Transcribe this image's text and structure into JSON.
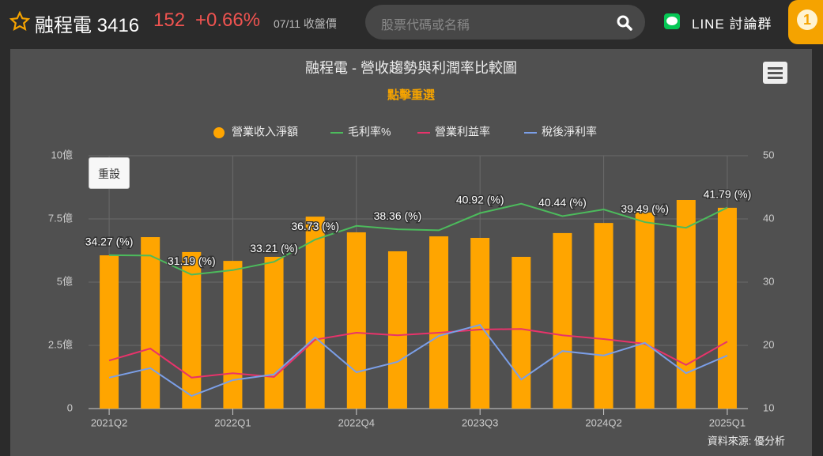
{
  "header": {
    "name": "融程電 3416",
    "price": "152",
    "change": "+0.66%",
    "date": "07/11 收盤價",
    "search_placeholder": "股票代碼或名稱",
    "line_group": "LINE 討論群",
    "badge": "1"
  },
  "chart_data": {
    "type": "bar",
    "title": "融程電 - 營收趨勢與利潤率比較圖",
    "subtitle": "點擊重選",
    "reset": "重設",
    "source": "資料來源: 優分析",
    "categories": [
      "2021Q2",
      null,
      null,
      "2022Q1",
      null,
      null,
      "2022Q4",
      null,
      null,
      "2023Q3",
      null,
      null,
      "2024Q2",
      null,
      null,
      "2025Q1"
    ],
    "series": [
      {
        "name": "營業收入淨額",
        "type": "bar",
        "color": "#ffa500",
        "values": [
          6.06,
          6.78,
          6.19,
          5.84,
          6.0,
          7.59,
          6.97,
          6.22,
          6.81,
          6.75,
          6.0,
          6.94,
          7.34,
          7.75,
          8.25,
          7.94
        ]
      },
      {
        "name": "毛利率%",
        "type": "line",
        "axis": "y2",
        "color": "#4cbb5c",
        "values": [
          34.27,
          34.2,
          31.19,
          31.9,
          33.21,
          36.73,
          38.9,
          38.36,
          38.2,
          40.92,
          42.4,
          40.44,
          41.5,
          39.49,
          38.6,
          41.79
        ],
        "value_labels": [
          "34.27 (%)",
          null,
          "31.19 (%)",
          null,
          "33.21 (%)",
          "36.73 (%)",
          null,
          "38.36 (%)",
          null,
          "40.92 (%)",
          null,
          "40.44 (%)",
          null,
          "39.49 (%)",
          null,
          "41.79 (%)"
        ]
      },
      {
        "name": "營業利益率",
        "type": "line",
        "axis": "y2",
        "color": "#e8336b",
        "values": [
          17.6,
          19.5,
          14.9,
          15.6,
          15.0,
          20.9,
          22.0,
          21.6,
          22.0,
          22.5,
          22.6,
          21.6,
          21.0,
          20.25,
          16.9,
          20.6
        ]
      },
      {
        "name": "稅後淨利率",
        "type": "line",
        "axis": "y2",
        "color": "#7b9fe8",
        "values": [
          14.9,
          16.4,
          12.0,
          14.5,
          15.4,
          21.25,
          15.75,
          17.4,
          21.5,
          23.25,
          14.6,
          19.1,
          18.4,
          20.4,
          15.6,
          18.4
        ]
      }
    ],
    "ylim": [
      0,
      10
    ],
    "yticks": [
      0,
      {
        "value": 2.5,
        "label": "2.5億"
      },
      {
        "value": 5,
        "label": "5億"
      },
      {
        "value": 7.5,
        "label": "7.5億"
      },
      {
        "value": 10,
        "label": "10億"
      }
    ],
    "y2lim": [
      10,
      50
    ],
    "y2ticks": [
      10,
      20,
      30,
      40,
      50
    ],
    "grid": true
  }
}
